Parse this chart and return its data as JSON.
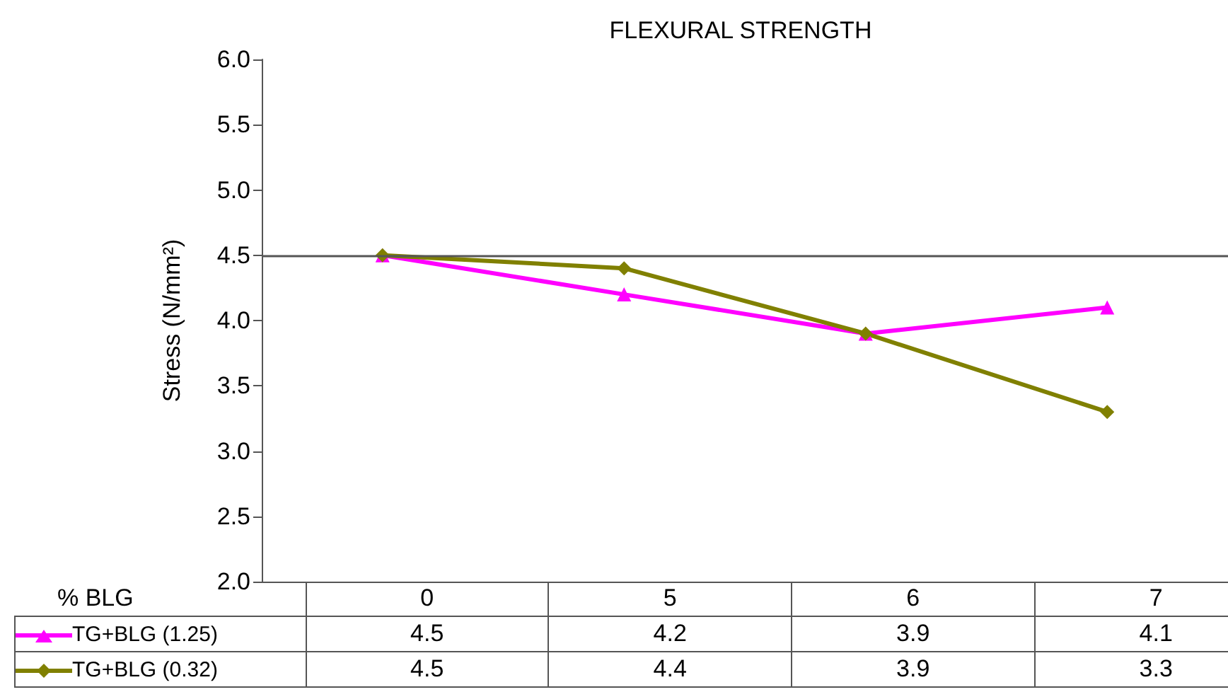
{
  "chart_data": {
    "type": "line",
    "title": "FLEXURAL STRENGTH",
    "xlabel": "% BLG",
    "ylabel": "Stress (N/mm²)",
    "categories": [
      "0",
      "5",
      "6",
      "7"
    ],
    "series": [
      {
        "name": "TG+BLG (1.25)",
        "color": "#ff00ff",
        "marker": "triangle",
        "values": [
          4.5,
          4.2,
          3.9,
          4.1
        ]
      },
      {
        "name": "TG+BLG (0.32)",
        "color": "#808000",
        "marker": "diamond",
        "values": [
          4.5,
          4.4,
          3.9,
          3.3
        ]
      }
    ],
    "ylim": [
      2,
      6
    ],
    "yticks": [
      {
        "value": 2,
        "label": "2.0"
      },
      2.5,
      {
        "value": 3,
        "label": "3.0"
      },
      3.5,
      {
        "value": 4,
        "label": "4.0"
      },
      4.5,
      {
        "value": 5,
        "label": "5.0"
      },
      5.5,
      {
        "value": 6,
        "label": "6.0"
      }
    ],
    "ref_lines": [
      {
        "axis": "y",
        "value": 4.5,
        "color": "#555555"
      }
    ],
    "data_labels": true,
    "legend": "bottom",
    "grid": false
  }
}
